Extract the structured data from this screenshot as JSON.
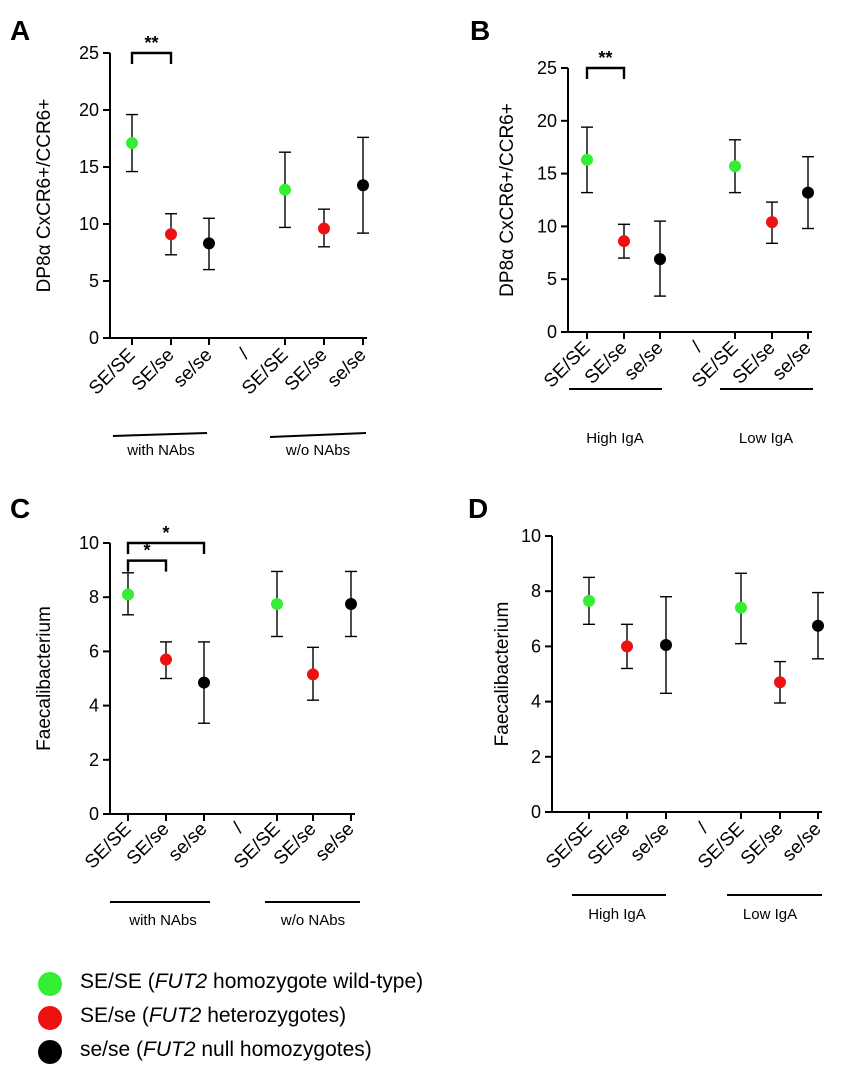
{
  "colors": {
    "green": "#33ee33",
    "red": "#ee1111",
    "black": "#000000"
  },
  "chart_data": [
    {
      "panel": "A",
      "type": "scatter",
      "ylabel": "DP8α CxCR6+/CCR6+",
      "ylim": [
        0,
        25
      ],
      "yticks": [
        0,
        5,
        10,
        15,
        20,
        25
      ],
      "categories": [
        "SE/SE",
        "SE/se",
        "se/se",
        "/",
        "SE/SE",
        "SE/se",
        "se/se"
      ],
      "groups": [
        "with NAbs",
        "w/o NAbs"
      ],
      "points": [
        {
          "genotype": "SE/SE",
          "group": "with NAbs",
          "value": 17.1,
          "low": 14.6,
          "high": 19.6,
          "color": "green"
        },
        {
          "genotype": "SE/se",
          "group": "with NAbs",
          "value": 9.1,
          "low": 7.3,
          "high": 10.9,
          "color": "red"
        },
        {
          "genotype": "se/se",
          "group": "with NAbs",
          "value": 8.3,
          "low": 6.0,
          "high": 10.5,
          "color": "black"
        },
        {
          "genotype": "SE/SE",
          "group": "w/o NAbs",
          "value": 13.0,
          "low": 9.7,
          "high": 16.3,
          "color": "green"
        },
        {
          "genotype": "SE/se",
          "group": "w/o NAbs",
          "value": 9.6,
          "low": 8.0,
          "high": 11.3,
          "color": "red"
        },
        {
          "genotype": "se/se",
          "group": "w/o NAbs",
          "value": 13.4,
          "low": 9.2,
          "high": 17.6,
          "color": "black"
        }
      ],
      "significance": [
        {
          "label": "**",
          "from": "SE/SE",
          "to": "SE/se",
          "value": 25.0
        }
      ]
    },
    {
      "panel": "B",
      "type": "scatter",
      "ylabel": "DP8α CxCR6+/CCR6+",
      "ylim": [
        0,
        25
      ],
      "yticks": [
        0,
        5,
        10,
        15,
        20,
        25
      ],
      "categories": [
        "SE/SE",
        "SE/se",
        "se/se",
        "/",
        "SE/SE",
        "SE/se",
        "se/se"
      ],
      "groups": [
        "High IgA",
        "Low IgA"
      ],
      "points": [
        {
          "genotype": "SE/SE",
          "group": "High IgA",
          "value": 16.3,
          "low": 13.2,
          "high": 19.4,
          "color": "green"
        },
        {
          "genotype": "SE/se",
          "group": "High IgA",
          "value": 8.6,
          "low": 7.0,
          "high": 10.2,
          "color": "red"
        },
        {
          "genotype": "se/se",
          "group": "High IgA",
          "value": 6.9,
          "low": 3.4,
          "high": 10.5,
          "color": "black"
        },
        {
          "genotype": "SE/SE",
          "group": "Low IgA",
          "value": 15.7,
          "low": 13.2,
          "high": 18.2,
          "color": "green"
        },
        {
          "genotype": "SE/se",
          "group": "Low IgA",
          "value": 10.4,
          "low": 8.4,
          "high": 12.3,
          "color": "red"
        },
        {
          "genotype": "se/se",
          "group": "Low IgA",
          "value": 13.2,
          "low": 9.8,
          "high": 16.6,
          "color": "black"
        }
      ],
      "significance": [
        {
          "label": "**",
          "from": "SE/SE",
          "to": "SE/se",
          "value": 25.0
        }
      ]
    },
    {
      "panel": "C",
      "type": "scatter",
      "ylabel": "Faecalibacterium",
      "ylim": [
        0,
        10
      ],
      "yticks": [
        0,
        2,
        4,
        6,
        8,
        10
      ],
      "categories": [
        "SE/SE",
        "SE/se",
        "se/se",
        "/",
        "SE/SE",
        "SE/se",
        "se/se"
      ],
      "groups": [
        "with NAbs",
        "w/o NAbs"
      ],
      "points": [
        {
          "genotype": "SE/SE",
          "group": "with NAbs",
          "value": 8.1,
          "low": 7.35,
          "high": 8.9,
          "color": "green"
        },
        {
          "genotype": "SE/se",
          "group": "with NAbs",
          "value": 5.7,
          "low": 5.0,
          "high": 6.35,
          "color": "red"
        },
        {
          "genotype": "se/se",
          "group": "with NAbs",
          "value": 4.85,
          "low": 3.35,
          "high": 6.35,
          "color": "black"
        },
        {
          "genotype": "SE/SE",
          "group": "w/o NAbs",
          "value": 7.75,
          "low": 6.55,
          "high": 8.95,
          "color": "green"
        },
        {
          "genotype": "SE/se",
          "group": "w/o NAbs",
          "value": 5.15,
          "low": 4.2,
          "high": 6.15,
          "color": "red"
        },
        {
          "genotype": "se/se",
          "group": "w/o NAbs",
          "value": 7.75,
          "low": 6.55,
          "high": 8.95,
          "color": "black"
        }
      ],
      "significance": [
        {
          "label": "*",
          "from": "SE/SE",
          "to": "SE/se",
          "value": 9.35
        },
        {
          "label": "*",
          "from": "SE/SE",
          "to": "se/se",
          "value": 10.0
        }
      ]
    },
    {
      "panel": "D",
      "type": "scatter",
      "ylabel": "Faecalibacterium",
      "ylim": [
        0,
        10
      ],
      "yticks": [
        0,
        2,
        4,
        6,
        8,
        10
      ],
      "categories": [
        "SE/SE",
        "SE/se",
        "se/se",
        "/",
        "SE/SE",
        "SE/se",
        "se/se"
      ],
      "groups": [
        "High IgA",
        "Low IgA"
      ],
      "points": [
        {
          "genotype": "SE/SE",
          "group": "High IgA",
          "value": 7.65,
          "low": 6.8,
          "high": 8.5,
          "color": "green"
        },
        {
          "genotype": "SE/se",
          "group": "High IgA",
          "value": 6.0,
          "low": 5.2,
          "high": 6.8,
          "color": "red"
        },
        {
          "genotype": "se/se",
          "group": "High IgA",
          "value": 6.05,
          "low": 4.3,
          "high": 7.8,
          "color": "black"
        },
        {
          "genotype": "SE/SE",
          "group": "Low IgA",
          "value": 7.4,
          "low": 6.1,
          "high": 8.65,
          "color": "green"
        },
        {
          "genotype": "SE/se",
          "group": "Low IgA",
          "value": 4.7,
          "low": 3.95,
          "high": 5.45,
          "color": "red"
        },
        {
          "genotype": "se/se",
          "group": "Low IgA",
          "value": 6.75,
          "low": 5.55,
          "high": 7.95,
          "color": "black"
        }
      ],
      "significance": []
    }
  ],
  "legend": [
    {
      "color": "green",
      "prefix": "SE/SE (",
      "gene": "FUT2",
      "suffix": " homozygote wild-type)"
    },
    {
      "color": "red",
      "prefix": "SE/se (",
      "gene": "FUT2",
      "suffix": " heterozygotes)"
    },
    {
      "color": "black",
      "prefix": "se/se (",
      "gene": "FUT2",
      "suffix": " null homozygotes)"
    }
  ]
}
